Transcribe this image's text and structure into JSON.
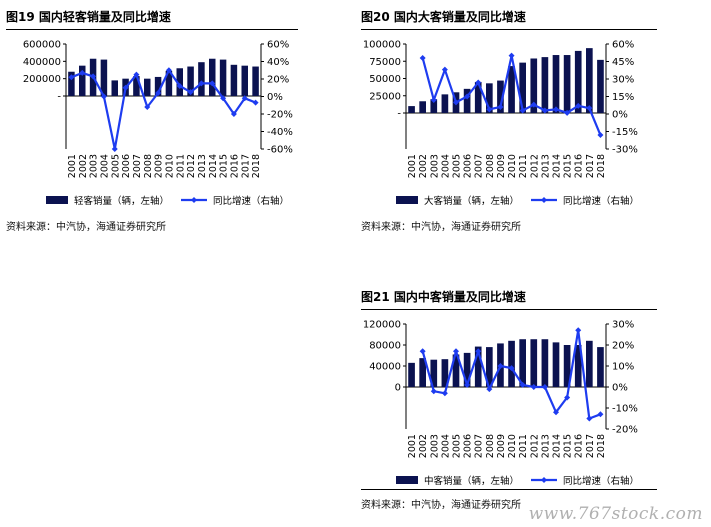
{
  "watermark": "www.767stock.com",
  "charts": [
    {
      "title": "图19 国内轻客销量及同比增速",
      "source": "资料来源：中汽协，海通证券研究所",
      "legend_bar": "轻客销量（辆，左轴）",
      "legend_line": "同比增速（右轴）"
    },
    {
      "title": "图20 国内大客销量及同比增速",
      "source": "资料来源：中汽协，海通证券研究所",
      "legend_bar": "大客销量（辆，左轴）",
      "legend_line": "同比增速（右轴）"
    },
    {
      "title": "图21 国内中客销量及同比增速",
      "source": "资料来源：中汽协，海通证券研究所",
      "legend_bar": "中客销量（辆，左轴）",
      "legend_line": "同比增速（右轴）"
    }
  ],
  "chart_data": [
    {
      "type": "bar",
      "categories": [
        "2001",
        "2002",
        "2003",
        "2004",
        "2005",
        "2006",
        "2007",
        "2008",
        "2009",
        "2010",
        "2011",
        "2012",
        "2013",
        "2014",
        "2015",
        "2016",
        "2017",
        "2018"
      ],
      "series": [
        {
          "name": "轻客销量（辆，左轴）",
          "type": "bar",
          "axis": "left",
          "color": "#0b1250",
          "values": [
            280000,
            350000,
            430000,
            420000,
            180000,
            200000,
            230000,
            200000,
            220000,
            290000,
            320000,
            340000,
            390000,
            430000,
            420000,
            360000,
            350000,
            340000
          ]
        },
        {
          "name": "同比增速（右轴）",
          "type": "line",
          "axis": "right",
          "color": "#1e3cf0",
          "values": [
            0.22,
            0.27,
            0.23,
            0.0,
            -0.6,
            0.1,
            0.25,
            -0.12,
            0.04,
            0.3,
            0.12,
            0.05,
            0.15,
            0.15,
            -0.02,
            -0.2,
            -0.02,
            -0.07
          ]
        }
      ],
      "yleft_ticks": [
        "600000",
        "400000",
        "200000",
        "-"
      ],
      "yleft_lim": [
        0,
        600000
      ],
      "yright_ticks": [
        "60%",
        "40%",
        "20%",
        "0%",
        "-20%",
        "-40%",
        "-60%"
      ],
      "yright_lim": [
        -0.6,
        0.6
      ]
    },
    {
      "type": "bar",
      "categories": [
        "2001",
        "2002",
        "2003",
        "2004",
        "2005",
        "2006",
        "2007",
        "2008",
        "2009",
        "2010",
        "2011",
        "2012",
        "2013",
        "2014",
        "2015",
        "2016",
        "2017",
        "2018"
      ],
      "series": [
        {
          "name": "大客销量（辆，左轴）",
          "type": "bar",
          "axis": "left",
          "color": "#0b1250",
          "values": [
            10000,
            17000,
            20000,
            27000,
            30000,
            35000,
            45000,
            43000,
            47000,
            68000,
            73000,
            79000,
            81000,
            84000,
            84000,
            90000,
            94000,
            77000
          ]
        },
        {
          "name": "同比增速（右轴）",
          "type": "line",
          "axis": "right",
          "color": "#1e3cf0",
          "values": [
            null,
            0.48,
            0.12,
            0.38,
            0.1,
            0.15,
            0.27,
            0.04,
            0.06,
            0.5,
            0.03,
            0.08,
            0.03,
            0.04,
            0.01,
            0.07,
            0.05,
            -0.18
          ]
        }
      ],
      "yleft_ticks": [
        "100000",
        "75000",
        "50000",
        "25000",
        "-"
      ],
      "yleft_lim": [
        0,
        100000
      ],
      "yright_ticks": [
        "60%",
        "45%",
        "30%",
        "15%",
        "0%",
        "-15%",
        "-30%"
      ],
      "yright_lim": [
        -0.3,
        0.6
      ]
    },
    {
      "type": "bar",
      "categories": [
        "2001",
        "2002",
        "2003",
        "2004",
        "2005",
        "2006",
        "2007",
        "2008",
        "2009",
        "2010",
        "2011",
        "2012",
        "2013",
        "2014",
        "2015",
        "2016",
        "2017",
        "2018"
      ],
      "series": [
        {
          "name": "中客销量（辆，左轴）",
          "type": "bar",
          "axis": "left",
          "color": "#0b1250",
          "values": [
            46000,
            55000,
            52000,
            53000,
            62000,
            65000,
            77000,
            76000,
            83000,
            88000,
            91000,
            91000,
            91000,
            85000,
            80000,
            80000,
            88000,
            76000
          ]
        },
        {
          "name": "同比增速（右轴）",
          "type": "line",
          "axis": "right",
          "color": "#1e3cf0",
          "values": [
            null,
            0.17,
            -0.02,
            -0.03,
            0.17,
            0.01,
            0.17,
            -0.01,
            0.1,
            0.09,
            0.01,
            0.0,
            0.0,
            -0.12,
            -0.05,
            0.27,
            -0.15,
            -0.13
          ]
        }
      ],
      "yleft_ticks": [
        "120000",
        "80000",
        "40000",
        "0"
      ],
      "yleft_lim": [
        0,
        120000
      ],
      "yright_ticks": [
        "30%",
        "20%",
        "10%",
        "0%",
        "-10%",
        "-20%"
      ],
      "yright_lim": [
        -0.2,
        0.3
      ]
    }
  ]
}
